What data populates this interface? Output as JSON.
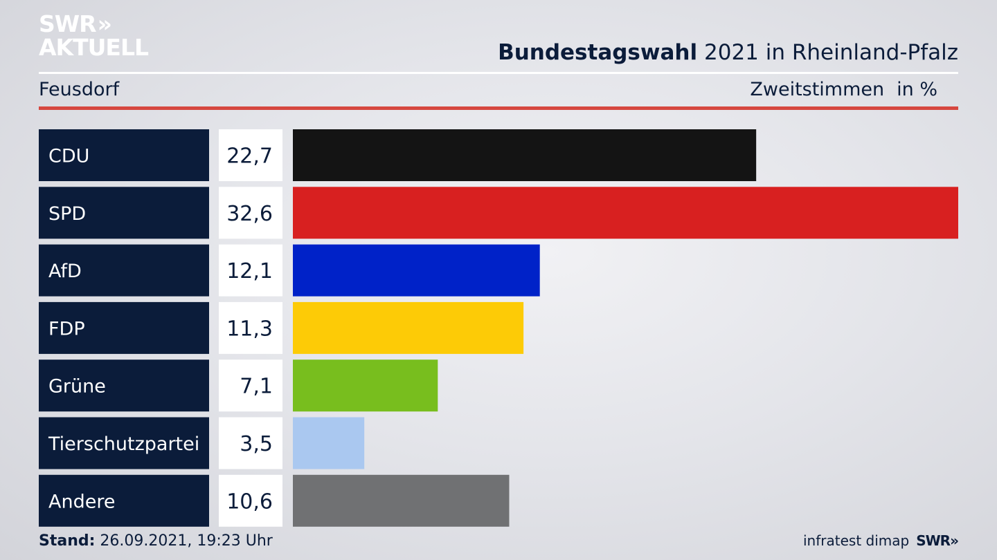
{
  "header": {
    "logo_line1": "SWR",
    "logo_chevrons": "»",
    "logo_line2": "AKTUELL",
    "title_bold": "Bundestagswahl",
    "title_rest": "2021 in Rheinland-Pfalz",
    "region": "Feusdorf",
    "measure": "Zweitstimmen",
    "unit": "in %"
  },
  "footer": {
    "stand_label": "Stand:",
    "stand_value": "26.09.2021, 19:23 Uhr",
    "source": "infratest dimap",
    "brand": "SWR»"
  },
  "chart_data": {
    "type": "bar",
    "orientation": "horizontal",
    "title": "Bundestagswahl 2021 in Rheinland-Pfalz",
    "subtitle": "Feusdorf",
    "xlabel": "Zweitstimmen in %",
    "ylabel": "",
    "xlim": [
      0,
      32.6
    ],
    "categories": [
      "CDU",
      "SPD",
      "AfD",
      "FDP",
      "Grüne",
      "Tierschutzpartei",
      "Andere"
    ],
    "values": [
      22.7,
      32.6,
      12.1,
      11.3,
      7.1,
      3.5,
      10.6
    ],
    "value_labels": [
      "22,7",
      "32,6",
      "12,1",
      "11,3",
      "7,1",
      "3,5",
      "10,6"
    ],
    "colors": [
      "#141414",
      "#d82020",
      "#0022c8",
      "#fdcb06",
      "#78be1e",
      "#aac8f0",
      "#707173"
    ],
    "label_box_color": "#0b1c3a"
  }
}
